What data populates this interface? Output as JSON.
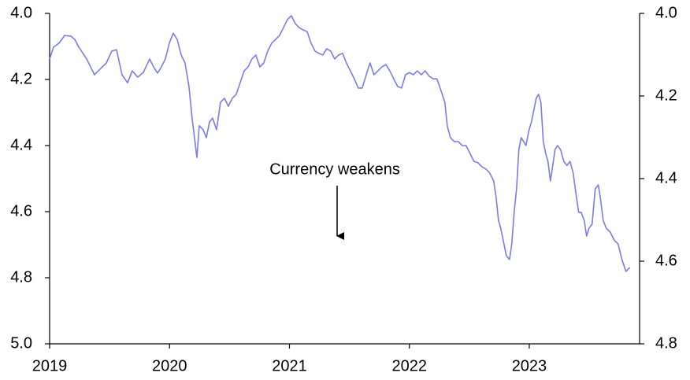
{
  "chart_data": {
    "type": "line",
    "annotation": "Currency weakens",
    "color": "#7b7bea",
    "x": [
      2019.0,
      2019.033,
      2019.079,
      2019.125,
      2019.177,
      2019.21,
      2019.243,
      2019.309,
      2019.374,
      2019.42,
      2019.473,
      2019.519,
      2019.558,
      2019.604,
      2019.65,
      2019.689,
      2019.735,
      2019.781,
      2019.834,
      2019.867,
      2019.9,
      2019.932,
      2019.965,
      2019.998,
      2020.031,
      2020.064,
      2020.097,
      2020.129,
      2020.162,
      2020.188,
      2020.208,
      2020.228,
      2020.248,
      2020.28,
      2020.307,
      2020.333,
      2020.359,
      2020.392,
      2020.425,
      2020.458,
      2020.49,
      2020.523,
      2020.556,
      2020.589,
      2020.622,
      2020.655,
      2020.687,
      2020.72,
      2020.753,
      2020.786,
      2020.819,
      2020.852,
      2020.884,
      2020.917,
      2020.95,
      2020.983,
      2021.016,
      2021.049,
      2021.081,
      2021.114,
      2021.147,
      2021.18,
      2021.213,
      2021.246,
      2021.278,
      2021.311,
      2021.344,
      2021.377,
      2021.41,
      2021.443,
      2021.475,
      2021.508,
      2021.541,
      2021.574,
      2021.607,
      2021.64,
      2021.672,
      2021.705,
      2021.738,
      2021.771,
      2021.804,
      2021.837,
      2021.869,
      2021.902,
      2021.935,
      2021.968,
      2022.001,
      2022.033,
      2022.066,
      2022.099,
      2022.132,
      2022.165,
      2022.198,
      2022.23,
      2022.263,
      2022.296,
      2022.316,
      2022.342,
      2022.375,
      2022.408,
      2022.441,
      2022.473,
      2022.506,
      2022.539,
      2022.572,
      2022.605,
      2022.638,
      2022.67,
      2022.703,
      2022.723,
      2022.743,
      2022.762,
      2022.789,
      2022.808,
      2022.835,
      2022.854,
      2022.874,
      2022.894,
      2022.913,
      2022.933,
      2022.953,
      2022.972,
      2022.999,
      2023.018,
      2023.038,
      2023.058,
      2023.077,
      2023.097,
      2023.117,
      2023.137,
      2023.156,
      2023.176,
      2023.196,
      2023.215,
      2023.235,
      2023.261,
      2023.288,
      2023.314,
      2023.34,
      2023.366,
      2023.393,
      2023.412,
      2023.432,
      2023.458,
      2023.478,
      2023.498,
      2023.524,
      2023.55,
      2023.576,
      2023.596,
      2023.616,
      2023.642,
      2023.675,
      2023.708,
      2023.741,
      2023.773,
      2023.806,
      2023.839
    ],
    "values": [
      4.138,
      4.102,
      4.09,
      4.067,
      4.069,
      4.079,
      4.102,
      4.138,
      4.186,
      4.169,
      4.15,
      4.114,
      4.11,
      4.186,
      4.21,
      4.174,
      4.193,
      4.179,
      4.138,
      4.162,
      4.181,
      4.162,
      4.138,
      4.09,
      4.06,
      4.079,
      4.126,
      4.15,
      4.221,
      4.317,
      4.376,
      4.436,
      4.34,
      4.352,
      4.376,
      4.329,
      4.317,
      4.352,
      4.269,
      4.257,
      4.281,
      4.257,
      4.245,
      4.21,
      4.174,
      4.162,
      4.138,
      4.126,
      4.162,
      4.15,
      4.114,
      4.09,
      4.079,
      4.067,
      4.043,
      4.019,
      4.007,
      4.031,
      4.043,
      4.05,
      4.055,
      4.09,
      4.114,
      4.121,
      4.126,
      4.107,
      4.114,
      4.138,
      4.126,
      4.121,
      4.15,
      4.174,
      4.198,
      4.226,
      4.226,
      4.186,
      4.15,
      4.186,
      4.174,
      4.162,
      4.155,
      4.174,
      4.198,
      4.221,
      4.226,
      4.186,
      4.179,
      4.186,
      4.174,
      4.186,
      4.174,
      4.19,
      4.198,
      4.198,
      4.233,
      4.269,
      4.34,
      4.376,
      4.388,
      4.388,
      4.4,
      4.4,
      4.424,
      4.448,
      4.452,
      4.464,
      4.471,
      4.483,
      4.507,
      4.555,
      4.626,
      4.65,
      4.698,
      4.733,
      4.745,
      4.698,
      4.602,
      4.531,
      4.412,
      4.376,
      4.388,
      4.4,
      4.352,
      4.329,
      4.293,
      4.257,
      4.245,
      4.269,
      4.388,
      4.424,
      4.448,
      4.507,
      4.46,
      4.412,
      4.4,
      4.412,
      4.448,
      4.46,
      4.448,
      4.483,
      4.555,
      4.602,
      4.602,
      4.626,
      4.674,
      4.65,
      4.638,
      4.531,
      4.519,
      4.567,
      4.626,
      4.65,
      4.662,
      4.686,
      4.698,
      4.745,
      4.781,
      4.769
    ],
    "xlim": [
      2019,
      2023.92
    ],
    "xticks": [
      2019,
      2020,
      2021,
      2022,
      2023
    ],
    "ylim": [
      5.0,
      4.0
    ],
    "yticks": [
      {
        "value": 4.0,
        "label": "4.0"
      },
      4.2,
      4.4,
      4.6,
      4.8,
      {
        "value": 5.0,
        "label": "5.0"
      }
    ],
    "y2lim": [
      4.8,
      4.0
    ],
    "y2ticks": [
      {
        "value": 4.0,
        "label": "4.0"
      },
      4.2,
      4.4,
      4.6,
      4.8
    ]
  }
}
